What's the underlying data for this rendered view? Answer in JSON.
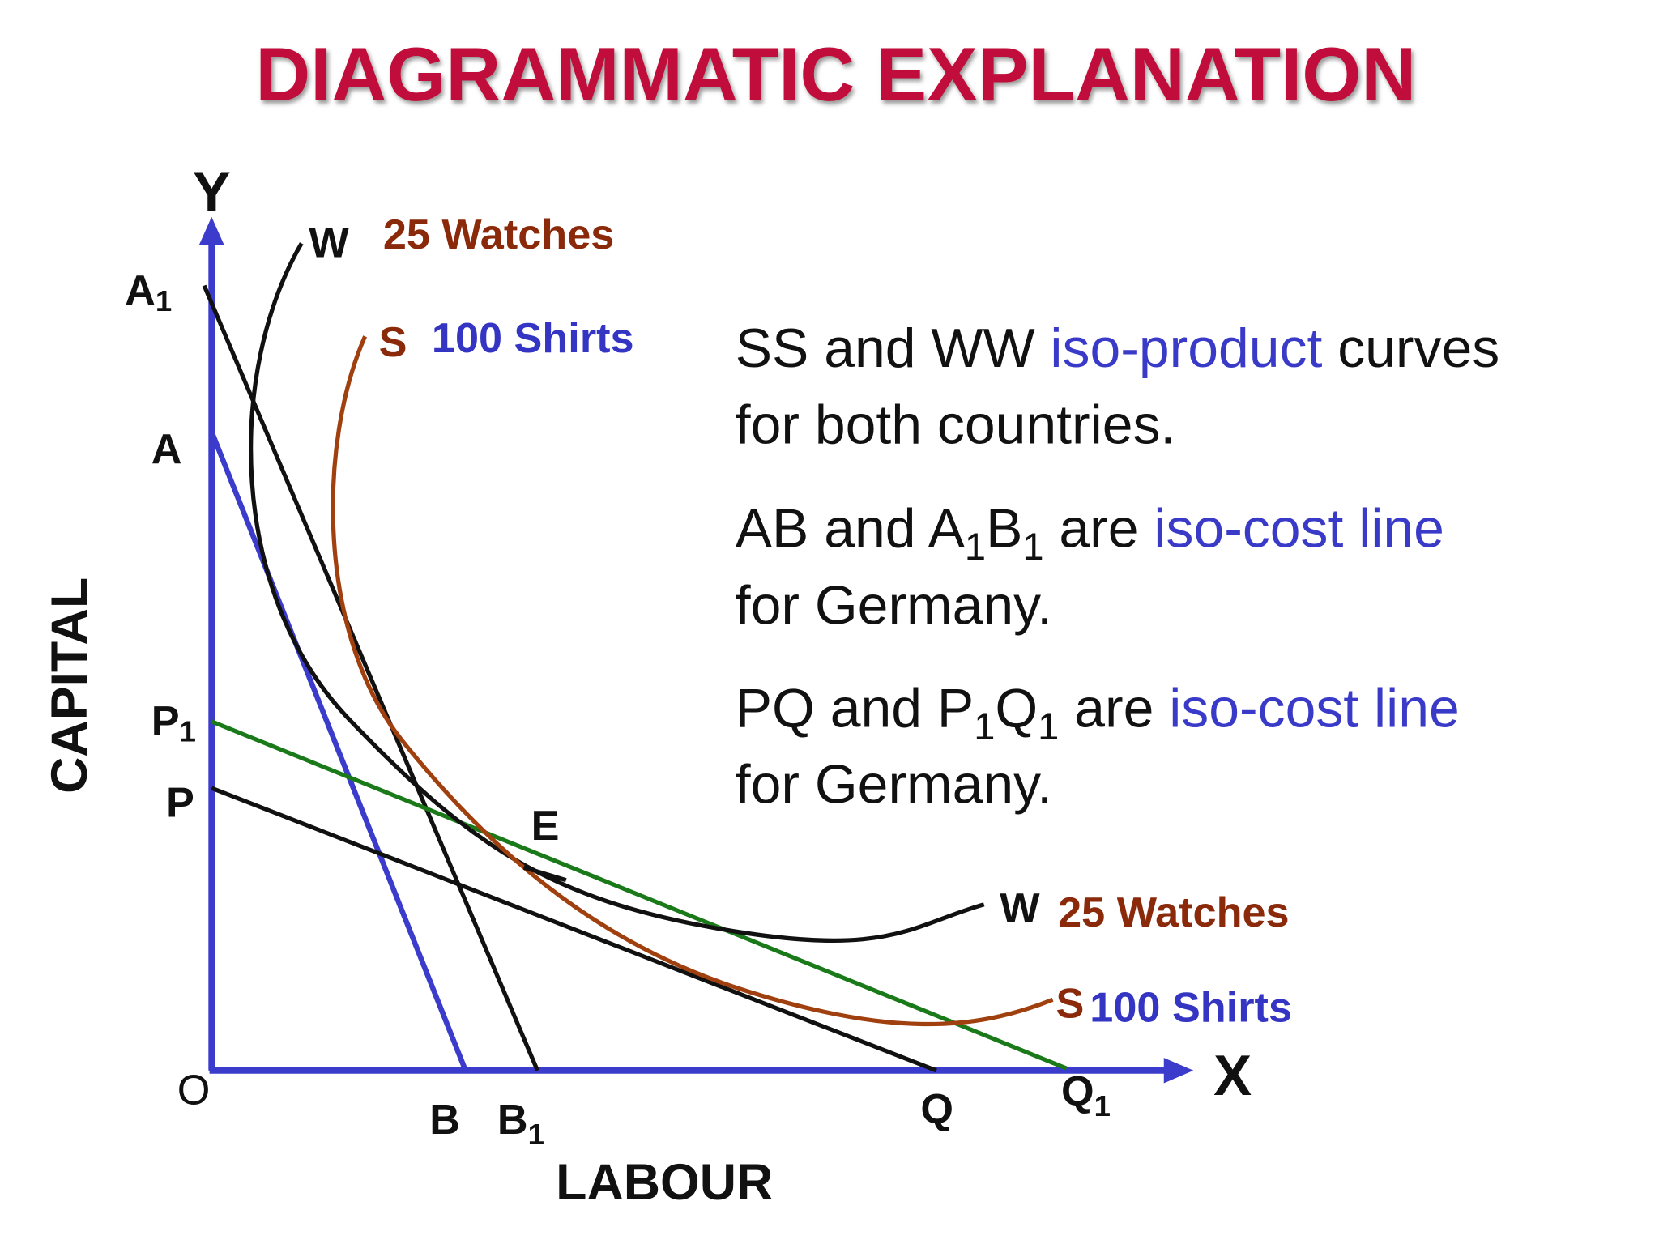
{
  "title": "DIAGRAMMATIC EXPLANATION",
  "axes": {
    "y": "Y",
    "x": "X",
    "origin": "O",
    "y_label": "CAPITAL",
    "x_label": "LABOUR"
  },
  "points": [
    {
      "text": "A",
      "sub": "1"
    },
    {
      "text": "A"
    },
    {
      "text": "P",
      "sub": "1"
    },
    {
      "text": "P"
    },
    {
      "text": "E"
    },
    {
      "text": "B"
    },
    {
      "text": "B",
      "sub": "1"
    },
    {
      "text": "Q"
    },
    {
      "text": "Q",
      "sub": "1"
    }
  ],
  "curves": [
    {
      "name": "W",
      "label": "25 Watches"
    },
    {
      "name": "S",
      "label": "100 Shirts"
    },
    {
      "name": "W",
      "label": "25 Watches"
    },
    {
      "name": "S",
      "label": "100 Shirts"
    }
  ],
  "notes": [
    [
      [
        {
          "text": "SS and WW ",
          "style": "plain"
        },
        {
          "text": "iso-product",
          "style": "highlight"
        },
        {
          "text": " curves",
          "style": "plain"
        }
      ],
      [
        {
          "text": "for both countries.",
          "style": "plain"
        }
      ]
    ],
    [
      [
        {
          "text": "AB and A",
          "style": "plain"
        },
        {
          "text": "1",
          "style": "sub"
        },
        {
          "text": "B",
          "style": "plain"
        },
        {
          "text": "1",
          "style": "sub"
        },
        {
          "text": " are ",
          "style": "plain"
        },
        {
          "text": "iso-cost line",
          "style": "highlight"
        }
      ],
      [
        {
          "text": "for Germany.",
          "style": "plain"
        }
      ]
    ],
    [
      [
        {
          "text": "PQ and P",
          "style": "plain"
        },
        {
          "text": "1",
          "style": "sub"
        },
        {
          "text": "Q",
          "style": "plain"
        },
        {
          "text": "1",
          "style": "sub"
        },
        {
          "text": " are ",
          "style": "plain"
        },
        {
          "text": "iso-cost line",
          "style": "highlight"
        }
      ],
      [
        {
          "text": "for Germany.",
          "style": "plain"
        }
      ]
    ]
  ]
}
